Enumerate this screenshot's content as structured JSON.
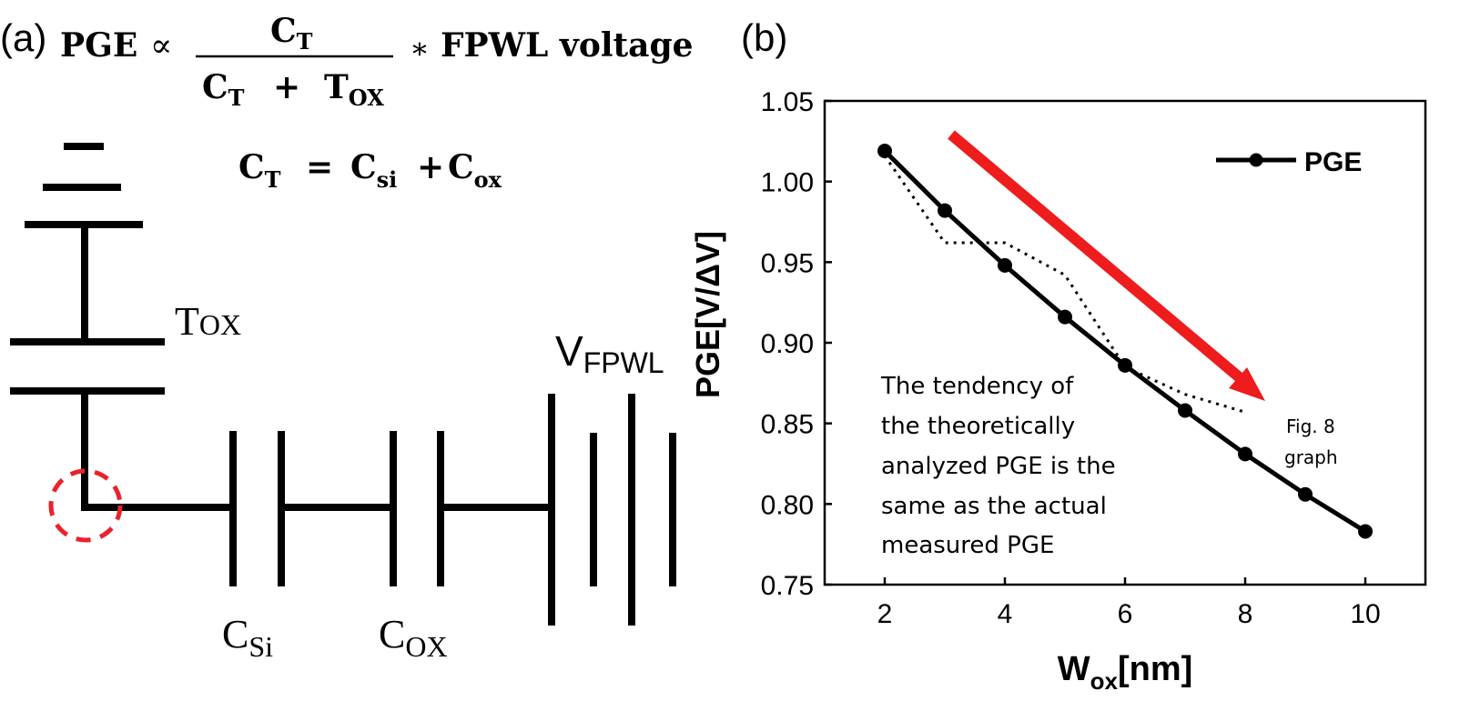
{
  "panel_a": {
    "label": "(a)",
    "formula": {
      "lhs": "PGE",
      "propto": "∝",
      "numerator": "C",
      "numerator_sub": "T",
      "denominator_c": "C",
      "denominator_c_sub": "T",
      "plus": "+",
      "denominator_t": "T",
      "denominator_t_sub": "OX",
      "times": "∗",
      "rhs": "FPWL voltage"
    },
    "ct_eq": {
      "c": "C",
      "c_sub": "T",
      "eq": "=",
      "csi": "C",
      "csi_sub": "si",
      "plus": "+",
      "cox": "C",
      "cox_sub": "ox"
    },
    "circuit_labels": {
      "tox": "T",
      "tox_sub": "OX",
      "vfpwl": "V",
      "vfpwl_sub": "FPWL",
      "csi": "C",
      "csi_sub": "Si",
      "cox": "C",
      "cox_sub": "OX"
    },
    "colors": {
      "lines": "#000000",
      "marker_circle": "#e8232a"
    }
  },
  "panel_b": {
    "label": "(b)",
    "annotation": [
      "The tendency of",
      "the theoretically",
      "analyzed PGE is the",
      "same as the actual",
      "measured PGE"
    ],
    "fig_note": [
      "Fig. 8",
      "graph"
    ],
    "arrow_color": "#ee1c1c"
  },
  "chart_data": {
    "type": "line",
    "x": [
      2,
      3,
      4,
      5,
      6,
      7,
      8,
      9,
      10
    ],
    "series": [
      {
        "name": "PGE",
        "values": [
          1.019,
          0.982,
          0.948,
          0.916,
          0.886,
          0.858,
          0.831,
          0.806,
          0.783
        ]
      }
    ],
    "reference_trace": {
      "x": [
        2,
        3,
        3.5,
        4,
        5,
        6,
        7,
        8
      ],
      "values": [
        1.016,
        0.962,
        0.962,
        0.962,
        0.942,
        0.885,
        0.868,
        0.857
      ]
    },
    "xlabel": "W",
    "xlabel_sub": "ox",
    "xlabel_tail": "[nm]",
    "ylabel": "PGE[V/ΔV]",
    "xlim": [
      1,
      11
    ],
    "ylim": [
      0.75,
      1.05
    ],
    "xticks": [
      "2",
      "4",
      "6",
      "8",
      "10"
    ],
    "yticks": [
      "0.75",
      "0.80",
      "0.85",
      "0.90",
      "0.95",
      "1.00",
      "1.05"
    ],
    "legend": "top-right",
    "grid": false
  }
}
